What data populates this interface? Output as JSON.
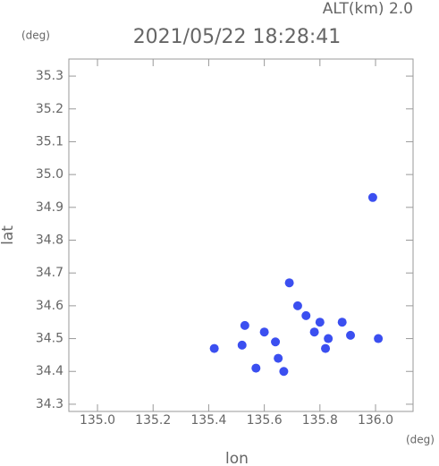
{
  "chart_data": {
    "type": "scatter",
    "title": "2021/05/22 18:28:41",
    "annotation": "ALT(km) 2.0",
    "y_unit": "(deg)",
    "x_unit": "(deg)",
    "xlabel": "lon",
    "ylabel": "lat",
    "color": "#3b4ff0",
    "x": [
      135.99,
      135.72,
      135.8,
      135.88,
      135.83,
      135.78,
      135.67,
      135.57,
      136.01,
      135.64,
      135.6,
      135.52,
      135.42,
      135.82,
      135.91,
      135.69,
      135.65,
      135.75,
      135.53
    ],
    "values": [
      34.93,
      34.6,
      34.55,
      34.55,
      34.5,
      34.52,
      34.4,
      34.41,
      34.5,
      34.49,
      34.52,
      34.48,
      34.47,
      34.47,
      34.51,
      34.67,
      34.44,
      34.57,
      34.54
    ],
    "xlim": [
      134.897,
      136.135
    ],
    "ylim": [
      34.278,
      35.352
    ],
    "xticks": [
      {
        "value": 135,
        "label": "135.0"
      },
      135.2,
      135.4,
      135.6,
      135.8,
      {
        "value": 136,
        "label": "136.0"
      }
    ],
    "yticks": [
      34.3,
      34.4,
      34.5,
      34.6,
      34.7,
      34.8,
      34.9,
      {
        "value": 35,
        "label": "35.0"
      },
      35.1,
      35.2,
      35.3
    ]
  }
}
